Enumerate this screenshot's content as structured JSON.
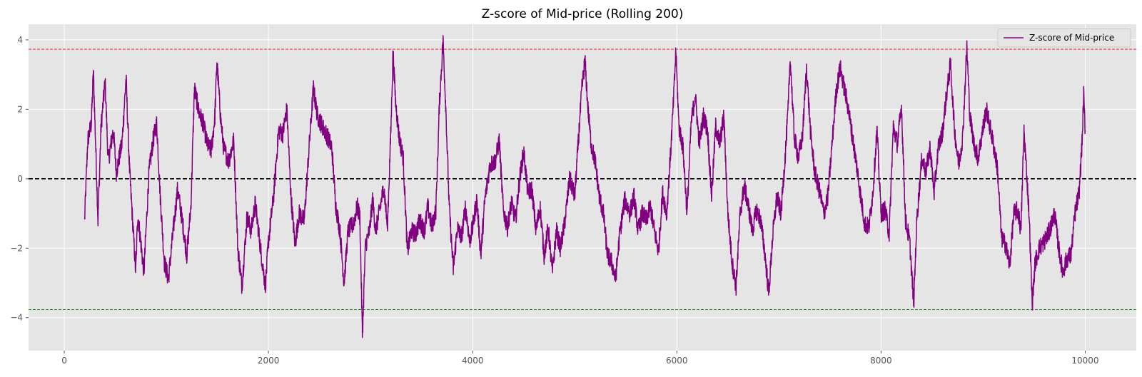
{
  "chart_data": {
    "type": "line",
    "title": "Z-score of Mid-price (Rolling 200)",
    "xlabel": "",
    "ylabel": "",
    "xlim": [
      -350,
      10500
    ],
    "ylim": [
      -4.95,
      4.45
    ],
    "x_ticks": [
      0,
      2000,
      4000,
      6000,
      8000,
      10000
    ],
    "x_tick_labels": [
      "0",
      "2000",
      "4000",
      "6000",
      "8000",
      "10000"
    ],
    "y_ticks": [
      -4,
      -2,
      0,
      2,
      4
    ],
    "y_tick_labels": [
      "−4",
      "−2",
      "0",
      "2",
      "4"
    ],
    "grid": true,
    "legend_position": "top-right",
    "series": [
      {
        "name": "Z-score of Mid-price",
        "color": "#800080",
        "x_start": 199,
        "x_end": 9999,
        "anchors": [
          [
            199,
            -1.2
          ],
          [
            230,
            1.1
          ],
          [
            265,
            1.6
          ],
          [
            285,
            3.1
          ],
          [
            330,
            -1.2
          ],
          [
            360,
            1.5
          ],
          [
            400,
            2.8
          ],
          [
            430,
            0.5
          ],
          [
            480,
            1.4
          ],
          [
            510,
            0.2
          ],
          [
            565,
            1.0
          ],
          [
            605,
            2.9
          ],
          [
            640,
            0.2
          ],
          [
            700,
            -2.7
          ],
          [
            720,
            -1.0
          ],
          [
            780,
            -2.7
          ],
          [
            830,
            0.2
          ],
          [
            870,
            1.1
          ],
          [
            905,
            1.6
          ],
          [
            940,
            -0.5
          ],
          [
            980,
            -2.4
          ],
          [
            1020,
            -2.9
          ],
          [
            1070,
            -1.4
          ],
          [
            1110,
            -0.3
          ],
          [
            1160,
            -1.3
          ],
          [
            1200,
            -2.2
          ],
          [
            1240,
            -0.8
          ],
          [
            1275,
            2.6
          ],
          [
            1320,
            1.9
          ],
          [
            1360,
            1.6
          ],
          [
            1400,
            1.0
          ],
          [
            1440,
            0.8
          ],
          [
            1475,
            1.8
          ],
          [
            1495,
            3.4
          ],
          [
            1530,
            1.8
          ],
          [
            1560,
            0.9
          ],
          [
            1610,
            0.5
          ],
          [
            1660,
            1.1
          ],
          [
            1700,
            -2.0
          ],
          [
            1740,
            -3.1
          ],
          [
            1790,
            -1.1
          ],
          [
            1830,
            -1.5
          ],
          [
            1870,
            -0.7
          ],
          [
            1930,
            -2.2
          ],
          [
            1970,
            -3.1
          ],
          [
            2000,
            -1.8
          ],
          [
            2050,
            -0.5
          ],
          [
            2100,
            1.4
          ],
          [
            2140,
            1.3
          ],
          [
            2180,
            2.0
          ],
          [
            2220,
            -0.5
          ],
          [
            2260,
            -1.9
          ],
          [
            2300,
            -1.0
          ],
          [
            2350,
            -1.2
          ],
          [
            2400,
            1.0
          ],
          [
            2440,
            2.6
          ],
          [
            2480,
            1.8
          ],
          [
            2530,
            1.5
          ],
          [
            2580,
            1.2
          ],
          [
            2620,
            0.9
          ],
          [
            2660,
            -0.8
          ],
          [
            2700,
            -1.5
          ],
          [
            2740,
            -3.0
          ],
          [
            2780,
            -1.5
          ],
          [
            2830,
            -1.3
          ],
          [
            2870,
            -0.8
          ],
          [
            2895,
            -1.1
          ],
          [
            2920,
            -4.5
          ],
          [
            2950,
            -1.9
          ],
          [
            2990,
            -1.5
          ],
          [
            3020,
            -0.6
          ],
          [
            3050,
            -1.5
          ],
          [
            3090,
            -0.9
          ],
          [
            3130,
            -0.2
          ],
          [
            3165,
            -1.4
          ],
          [
            3200,
            1.5
          ],
          [
            3220,
            3.7
          ],
          [
            3245,
            2.2
          ],
          [
            3280,
            1.2
          ],
          [
            3320,
            0.6
          ],
          [
            3360,
            -2.1
          ],
          [
            3400,
            -1.5
          ],
          [
            3440,
            -1.6
          ],
          [
            3480,
            -1.2
          ],
          [
            3530,
            -1.5
          ],
          [
            3560,
            -0.8
          ],
          [
            3600,
            -1.4
          ],
          [
            3640,
            -0.9
          ],
          [
            3675,
            2.2
          ],
          [
            3710,
            4.0
          ],
          [
            3735,
            2.2
          ],
          [
            3770,
            -0.8
          ],
          [
            3810,
            -2.6
          ],
          [
            3850,
            -1.4
          ],
          [
            3890,
            -1.7
          ],
          [
            3930,
            -0.8
          ],
          [
            3970,
            -1.8
          ],
          [
            4000,
            -1.4
          ],
          [
            4040,
            -0.6
          ],
          [
            4080,
            -2.2
          ],
          [
            4120,
            -0.6
          ],
          [
            4170,
            0.4
          ],
          [
            4220,
            0.5
          ],
          [
            4260,
            1.1
          ],
          [
            4300,
            -0.9
          ],
          [
            4340,
            -1.4
          ],
          [
            4380,
            -0.7
          ],
          [
            4420,
            -1.2
          ],
          [
            4460,
            0.0
          ],
          [
            4500,
            0.8
          ],
          [
            4540,
            -0.4
          ],
          [
            4580,
            -0.3
          ],
          [
            4620,
            -1.5
          ],
          [
            4660,
            -0.8
          ],
          [
            4700,
            -2.2
          ],
          [
            4740,
            -1.4
          ],
          [
            4780,
            -2.7
          ],
          [
            4820,
            -1.5
          ],
          [
            4860,
            -2.0
          ],
          [
            4900,
            -1.3
          ],
          [
            4950,
            0.0
          ],
          [
            5000,
            -0.5
          ],
          [
            5040,
            1.3
          ],
          [
            5070,
            2.6
          ],
          [
            5100,
            3.4
          ],
          [
            5130,
            2.0
          ],
          [
            5160,
            1.0
          ],
          [
            5200,
            0.5
          ],
          [
            5240,
            -0.5
          ],
          [
            5280,
            -1.0
          ],
          [
            5320,
            -2.2
          ],
          [
            5360,
            -2.4
          ],
          [
            5400,
            -2.9
          ],
          [
            5440,
            -1.6
          ],
          [
            5490,
            -0.6
          ],
          [
            5540,
            -1.0
          ],
          [
            5580,
            -0.5
          ],
          [
            5620,
            -1.5
          ],
          [
            5660,
            -1.0
          ],
          [
            5700,
            -1.2
          ],
          [
            5740,
            -0.8
          ],
          [
            5780,
            -1.5
          ],
          [
            5820,
            -2.1
          ],
          [
            5860,
            -0.4
          ],
          [
            5900,
            -1.0
          ],
          [
            5940,
            0.8
          ],
          [
            5970,
            2.4
          ],
          [
            5990,
            3.7
          ],
          [
            6020,
            1.5
          ],
          [
            6060,
            0.9
          ],
          [
            6100,
            -1.0
          ],
          [
            6140,
            1.6
          ],
          [
            6180,
            2.4
          ],
          [
            6220,
            1.0
          ],
          [
            6260,
            1.8
          ],
          [
            6300,
            1.4
          ],
          [
            6340,
            -0.5
          ],
          [
            6380,
            1.5
          ],
          [
            6420,
            1.0
          ],
          [
            6460,
            1.8
          ],
          [
            6500,
            -1.0
          ],
          [
            6540,
            -2.4
          ],
          [
            6580,
            -3.1
          ],
          [
            6620,
            -1.0
          ],
          [
            6660,
            -0.2
          ],
          [
            6700,
            -0.8
          ],
          [
            6740,
            -1.5
          ],
          [
            6780,
            -0.9
          ],
          [
            6820,
            -1.2
          ],
          [
            6860,
            -2.1
          ],
          [
            6900,
            -3.3
          ],
          [
            6940,
            -1.6
          ],
          [
            6980,
            -0.5
          ],
          [
            7020,
            -1.0
          ],
          [
            7060,
            0.6
          ],
          [
            7090,
            2.0
          ],
          [
            7110,
            3.5
          ],
          [
            7150,
            1.2
          ],
          [
            7190,
            0.6
          ],
          [
            7230,
            1.2
          ],
          [
            7270,
            3.2
          ],
          [
            7310,
            1.3
          ],
          [
            7350,
            0.2
          ],
          [
            7400,
            -0.4
          ],
          [
            7440,
            -1.0
          ],
          [
            7480,
            -0.5
          ],
          [
            7520,
            1.0
          ],
          [
            7560,
            2.5
          ],
          [
            7600,
            3.2
          ],
          [
            7640,
            2.6
          ],
          [
            7680,
            2.0
          ],
          [
            7720,
            1.2
          ],
          [
            7760,
            0.4
          ],
          [
            7800,
            -0.5
          ],
          [
            7840,
            -1.3
          ],
          [
            7880,
            -1.4
          ],
          [
            7920,
            -0.4
          ],
          [
            7960,
            1.4
          ],
          [
            8000,
            -1.0
          ],
          [
            8040,
            -0.9
          ],
          [
            8080,
            -1.6
          ],
          [
            8120,
            1.5
          ],
          [
            8160,
            1.0
          ],
          [
            8200,
            2.1
          ],
          [
            8240,
            -1.2
          ],
          [
            8280,
            -1.8
          ],
          [
            8320,
            -3.6
          ],
          [
            8350,
            -1.2
          ],
          [
            8400,
            0.6
          ],
          [
            8440,
            0.2
          ],
          [
            8480,
            0.9
          ],
          [
            8520,
            -0.4
          ],
          [
            8560,
            0.9
          ],
          [
            8600,
            1.3
          ],
          [
            8640,
            2.4
          ],
          [
            8680,
            3.3
          ],
          [
            8720,
            1.4
          ],
          [
            8760,
            0.4
          ],
          [
            8800,
            1.2
          ],
          [
            8840,
            3.8
          ],
          [
            8870,
            1.8
          ],
          [
            8910,
            1.0
          ],
          [
            8950,
            0.6
          ],
          [
            8990,
            1.3
          ],
          [
            9030,
            2.0
          ],
          [
            9060,
            1.6
          ],
          [
            9100,
            1.0
          ],
          [
            9140,
            0.3
          ],
          [
            9180,
            -1.7
          ],
          [
            9220,
            -1.9
          ],
          [
            9260,
            -2.5
          ],
          [
            9300,
            -1.0
          ],
          [
            9340,
            -0.9
          ],
          [
            9370,
            -1.5
          ],
          [
            9400,
            1.4
          ],
          [
            9450,
            -1.0
          ],
          [
            9480,
            -3.6
          ],
          [
            9510,
            -2.4
          ],
          [
            9550,
            -2.0
          ],
          [
            9600,
            -1.8
          ],
          [
            9650,
            -1.5
          ],
          [
            9700,
            -1.0
          ],
          [
            9740,
            -2.0
          ],
          [
            9780,
            -2.7
          ],
          [
            9820,
            -2.3
          ],
          [
            9860,
            -2.2
          ],
          [
            9900,
            -1.0
          ],
          [
            9940,
            -0.4
          ],
          [
            9970,
            1.1
          ],
          [
            9985,
            2.4
          ],
          [
            9999,
            1.4
          ]
        ]
      }
    ],
    "hlines": [
      {
        "y": 3.73,
        "color": "#ff0000",
        "style": "dashed"
      },
      {
        "y": -3.77,
        "color": "#008000",
        "style": "dashed"
      },
      {
        "y": 0.0,
        "color": "#000000",
        "style": "dashed"
      }
    ],
    "background_color": "#e5e5e5",
    "grid_color": "#ffffff"
  }
}
